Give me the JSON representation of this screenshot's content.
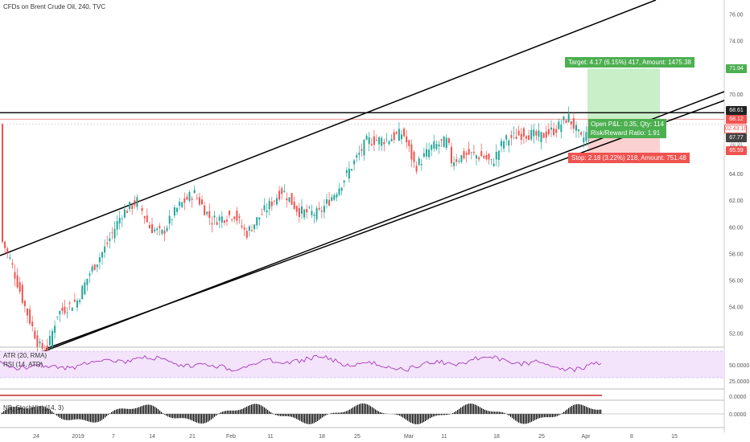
{
  "header": {
    "title": "CFDs on Brent Crude Oil, 240, TVC"
  },
  "colors": {
    "up": "#26a69a",
    "down": "#ef5350",
    "green_bar": "#4caf50",
    "red_bar": "#e53935",
    "target_fill": "#c8efc8",
    "stop_fill": "#fbd0d0",
    "rsi_band": "#f3e3fb",
    "rsi_line": "#9c27b0"
  },
  "price_axis": {
    "ticks": [
      "76.00",
      "74.00",
      "72.00",
      "70.00",
      "68.00",
      "66.00",
      "64.00",
      "62.00",
      "60.00",
      "58.00",
      "56.00",
      "54.00",
      "52.00"
    ]
  },
  "price_tags": {
    "target": "71.94",
    "resistance": "68.61",
    "entry": "68.12",
    "timer": "02:43:16",
    "last": "67.77",
    "hidden": "66.99",
    "stop": "65.59"
  },
  "position": {
    "target_label": "Target: 4.17 (6.15%) 417, Amount: 1475.38",
    "open_pnl_label": "Open P&L: 0.35, Qty: 114",
    "rr_label": "Risk/Reward Ratio: 1.91",
    "stop_label": "Stop: 2.18 (3.22%) 218, Amount: 751.48"
  },
  "rsi_pane": {
    "title1": "ATR (20, RMA)",
    "title2": "RSI (14, ATR)",
    "ticks": [
      "50.0000",
      "25.0000"
    ]
  },
  "mid_pane": {
    "ticks": [
      "0.0000"
    ]
  },
  "stoch_pane": {
    "title": "NB_StochHist (14, 3)",
    "ticks": [
      "0.0000"
    ]
  },
  "time_axis": {
    "labels": [
      "24",
      "2019",
      "7",
      "14",
      "21",
      "Feb",
      "11",
      "18",
      "25",
      "Mar",
      "11",
      "18",
      "25",
      "Apr",
      "8",
      "15"
    ]
  },
  "chart_data": {
    "type": "candlestick",
    "ylim": [
      50.5,
      77.2
    ],
    "x": [
      "Dec 20",
      "Dec 24",
      "Dec 27",
      "Jan 2",
      "Jan 7",
      "Jan 14",
      "Jan 21",
      "Jan 28",
      "Feb 4",
      "Feb 11",
      "Feb 18",
      "Feb 25",
      "Mar 4",
      "Mar 11",
      "Mar 18",
      "Mar 25",
      "Mar 27"
    ],
    "close": [
      59.2,
      50.5,
      53.8,
      55.5,
      61.2,
      60.2,
      61.5,
      61.0,
      62.0,
      65.5,
      66.8,
      65.0,
      65.5,
      67.2,
      67.5,
      68.3,
      67.77
    ],
    "levels": {
      "resistance": 68.61,
      "entry": 68.12,
      "target": 71.94,
      "stop": 65.59
    }
  }
}
